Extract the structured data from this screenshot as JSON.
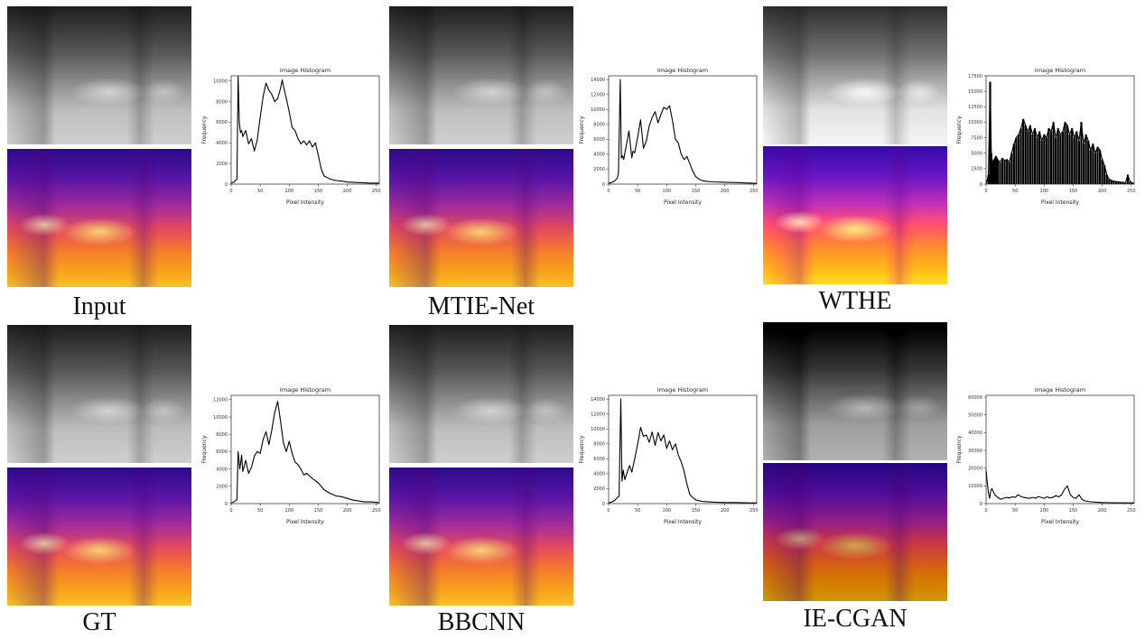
{
  "panels": [
    {
      "caption": "Input"
    },
    {
      "caption": "MTIE-Net"
    },
    {
      "caption": "WTHE"
    },
    {
      "caption": "GT"
    },
    {
      "caption": "BBCNN"
    },
    {
      "caption": "IE-CGAN"
    }
  ],
  "chart_data": [
    {
      "type": "line",
      "title": "Image Histogram",
      "xlabel": "Pixel Intensity",
      "ylabel": "Frequency",
      "xlim": [
        0,
        255
      ],
      "ylim": [
        0,
        10500
      ],
      "xticks": [
        0,
        50,
        100,
        150,
        200,
        250
      ],
      "yticks": [
        0,
        2000,
        4000,
        6000,
        8000,
        10000
      ],
      "x": [
        0,
        5,
        10,
        12,
        14,
        16,
        18,
        20,
        25,
        30,
        35,
        40,
        45,
        50,
        55,
        60,
        65,
        70,
        75,
        80,
        85,
        88,
        90,
        95,
        100,
        105,
        110,
        115,
        120,
        125,
        130,
        135,
        140,
        145,
        150,
        155,
        160,
        170,
        180,
        190,
        200,
        220,
        240,
        255
      ],
      "y": [
        100,
        200,
        500,
        10500,
        6000,
        5000,
        5200,
        4600,
        5200,
        3900,
        4400,
        3200,
        4300,
        6500,
        8500,
        9800,
        9100,
        8700,
        8000,
        8300,
        9300,
        10100,
        9500,
        8300,
        7000,
        5500,
        5200,
        4400,
        3900,
        4200,
        3800,
        4200,
        3600,
        4000,
        2800,
        1500,
        800,
        500,
        350,
        300,
        200,
        150,
        100,
        100
      ],
      "grid": false
    },
    {
      "type": "line",
      "title": "Image Histogram",
      "xlabel": "Pixel Intensity",
      "ylabel": "Frequency",
      "xlim": [
        0,
        255
      ],
      "ylim": [
        0,
        14500
      ],
      "xticks": [
        0,
        50,
        100,
        150,
        200,
        250
      ],
      "yticks": [
        0,
        2000,
        4000,
        6000,
        8000,
        10000,
        12000,
        14000
      ],
      "x": [
        0,
        5,
        10,
        15,
        17,
        20,
        22,
        24,
        26,
        30,
        35,
        40,
        42,
        45,
        50,
        55,
        60,
        65,
        70,
        75,
        80,
        85,
        90,
        95,
        100,
        105,
        110,
        115,
        120,
        125,
        130,
        135,
        140,
        145,
        150,
        155,
        160,
        170,
        180,
        200,
        220,
        240,
        255
      ],
      "y": [
        100,
        200,
        400,
        800,
        1500,
        14000,
        3500,
        3800,
        3300,
        5000,
        7100,
        3500,
        4400,
        4200,
        6300,
        8600,
        4800,
        5800,
        7800,
        8900,
        9700,
        8200,
        9300,
        10300,
        10000,
        10500,
        8500,
        6000,
        5500,
        4000,
        3300,
        3700,
        2700,
        1700,
        1000,
        700,
        500,
        350,
        300,
        250,
        200,
        150,
        100
      ],
      "grid": false
    },
    {
      "type": "bar",
      "title": "Image Histogram",
      "xlabel": "Pixel Intensity",
      "ylabel": "Frequency",
      "xlim": [
        0,
        255
      ],
      "ylim": [
        0,
        17500
      ],
      "xticks": [
        0,
        50,
        100,
        150,
        200,
        250
      ],
      "yticks": [
        0,
        2500,
        5000,
        7500,
        10000,
        12500,
        15000,
        17500
      ],
      "x": [
        0,
        4,
        7,
        9,
        11,
        14,
        17,
        20,
        24,
        28,
        32,
        36,
        40,
        44,
        48,
        52,
        56,
        60,
        64,
        68,
        72,
        76,
        80,
        84,
        88,
        92,
        96,
        100,
        104,
        108,
        112,
        116,
        120,
        124,
        128,
        132,
        136,
        140,
        144,
        148,
        152,
        156,
        160,
        164,
        168,
        172,
        176,
        180,
        184,
        188,
        192,
        196,
        200,
        204,
        208,
        212,
        216,
        220,
        224,
        228,
        232,
        236,
        240,
        244,
        248,
        252,
        255
      ],
      "y": [
        0,
        1500,
        16500,
        5000,
        3500,
        4000,
        4500,
        4000,
        3500,
        4200,
        3800,
        4000,
        3500,
        5000,
        6500,
        7500,
        8000,
        9000,
        10500,
        9500,
        8500,
        9500,
        8000,
        9000,
        7500,
        8500,
        7000,
        8000,
        7500,
        9000,
        8500,
        10000,
        7500,
        9000,
        8000,
        8500,
        10000,
        9500,
        8000,
        9000,
        7500,
        8500,
        7000,
        10000,
        6500,
        8000,
        7000,
        5500,
        6500,
        5000,
        6000,
        5500,
        4000,
        3000,
        1500,
        800,
        600,
        500,
        400,
        400,
        300,
        300,
        200,
        1500,
        400,
        200,
        0
      ],
      "grid": false
    },
    {
      "type": "line",
      "title": "Image Histogram",
      "xlabel": "Pixel Intensity",
      "ylabel": "Frequency",
      "xlim": [
        0,
        255
      ],
      "ylim": [
        0,
        12500
      ],
      "xticks": [
        0,
        50,
        100,
        150,
        200,
        250
      ],
      "yticks": [
        0,
        2000,
        4000,
        6000,
        8000,
        10000,
        12000
      ],
      "x": [
        0,
        5,
        10,
        12,
        15,
        18,
        20,
        25,
        30,
        35,
        40,
        45,
        50,
        55,
        60,
        65,
        70,
        75,
        80,
        85,
        88,
        90,
        95,
        100,
        105,
        110,
        115,
        120,
        125,
        130,
        140,
        150,
        160,
        170,
        180,
        190,
        200,
        210,
        220,
        230,
        240,
        250,
        255
      ],
      "y": [
        100,
        200,
        500,
        6000,
        4000,
        5600,
        3700,
        5000,
        3500,
        4200,
        5500,
        6000,
        5800,
        7400,
        8300,
        6800,
        8500,
        10500,
        11800,
        9500,
        8000,
        7000,
        6000,
        7200,
        5800,
        4800,
        4500,
        4000,
        3300,
        3500,
        2900,
        2400,
        1600,
        1200,
        900,
        800,
        600,
        400,
        300,
        200,
        200,
        150,
        100
      ],
      "grid": false
    },
    {
      "type": "line",
      "title": "Image Histogram",
      "xlabel": "Pixel Intensity",
      "ylabel": "Frequency",
      "xlim": [
        0,
        255
      ],
      "ylim": [
        0,
        14500
      ],
      "xticks": [
        0,
        50,
        100,
        150,
        200,
        250
      ],
      "yticks": [
        0,
        2000,
        4000,
        6000,
        8000,
        10000,
        12000,
        14000
      ],
      "x": [
        0,
        5,
        10,
        15,
        18,
        21,
        23,
        25,
        28,
        32,
        36,
        40,
        45,
        50,
        55,
        60,
        65,
        70,
        75,
        80,
        85,
        90,
        95,
        100,
        105,
        110,
        115,
        120,
        125,
        130,
        135,
        140,
        145,
        150,
        155,
        160,
        170,
        180,
        200,
        220,
        240,
        255
      ],
      "y": [
        100,
        200,
        400,
        800,
        1000,
        14000,
        3000,
        4500,
        3200,
        4200,
        5100,
        4200,
        6000,
        8000,
        10200,
        9000,
        9200,
        8200,
        9600,
        7800,
        9500,
        8400,
        9200,
        7400,
        8400,
        7200,
        8000,
        6500,
        5600,
        4300,
        2600,
        1200,
        800,
        500,
        400,
        300,
        250,
        200,
        150,
        150,
        100,
        100
      ],
      "grid": false
    },
    {
      "type": "line",
      "title": "Image Histogram",
      "xlabel": "Pixel Intensity",
      "ylabel": "Frequency",
      "xlim": [
        0,
        255
      ],
      "ylim": [
        0,
        61000
      ],
      "xticks": [
        0,
        50,
        100,
        150,
        200,
        250
      ],
      "yticks": [
        0,
        10000,
        20000,
        30000,
        40000,
        50000,
        60000
      ],
      "x": [
        0,
        2,
        4,
        6,
        8,
        10,
        15,
        20,
        25,
        30,
        35,
        40,
        45,
        50,
        55,
        60,
        65,
        70,
        75,
        80,
        85,
        90,
        95,
        100,
        105,
        110,
        115,
        120,
        125,
        130,
        135,
        140,
        145,
        150,
        155,
        160,
        165,
        170,
        180,
        190,
        200,
        220,
        240,
        255
      ],
      "y": [
        19000,
        12000,
        6000,
        3000,
        7000,
        8500,
        5000,
        3500,
        2500,
        3000,
        3500,
        3200,
        3800,
        3500,
        5000,
        4000,
        3500,
        3200,
        3000,
        3500,
        3000,
        4000,
        3500,
        3000,
        3800,
        3200,
        3500,
        4500,
        3800,
        5000,
        8000,
        10000,
        5000,
        3500,
        3000,
        5000,
        2500,
        1500,
        1000,
        800,
        600,
        500,
        400,
        400
      ],
      "grid": false
    }
  ]
}
